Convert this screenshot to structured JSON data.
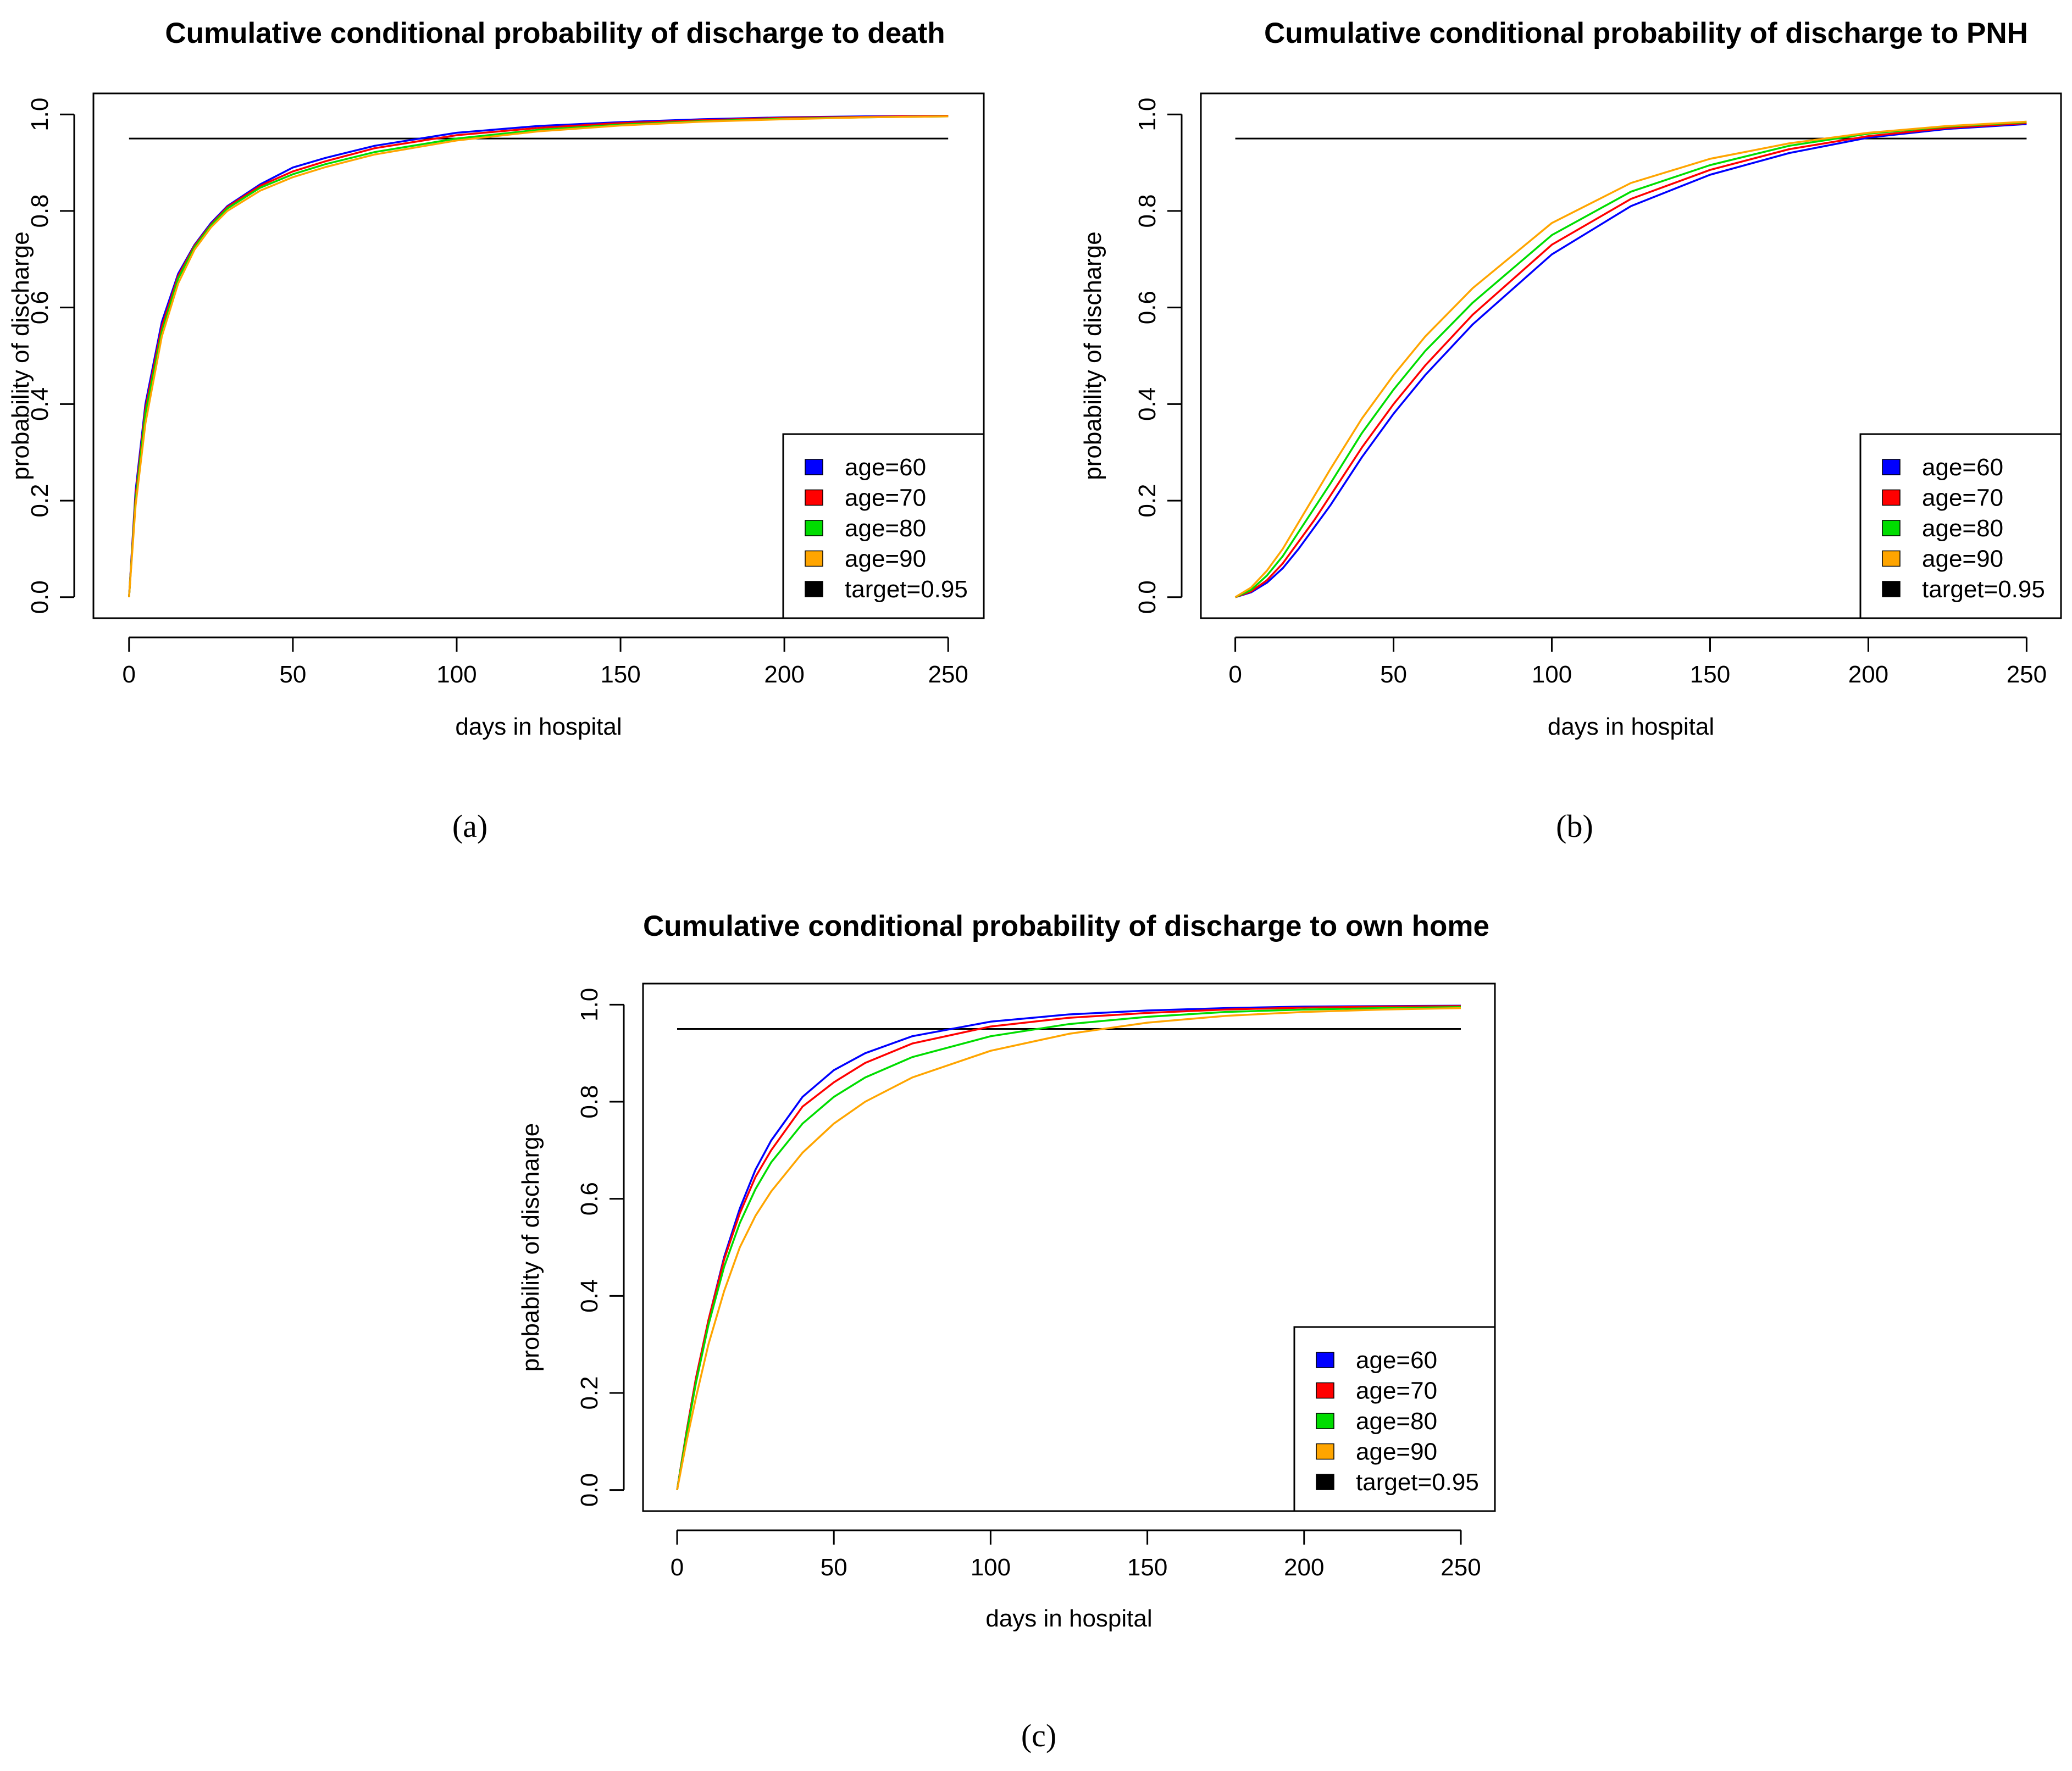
{
  "figure_labels": [
    "(a)",
    "(b)",
    "(c)"
  ],
  "chart_data": [
    {
      "type": "line",
      "title": "Cumulative conditional probability of discharge to death",
      "xlabel": "days in hospital",
      "ylabel": "probability of discharge",
      "xlim": [
        0,
        250
      ],
      "ylim": [
        0,
        1
      ],
      "xticks": [
        0,
        50,
        100,
        150,
        200,
        250
      ],
      "xtick_labels": [
        "0",
        "50",
        "100",
        "150",
        "200",
        "250"
      ],
      "yticks": [
        0,
        0.2,
        0.4,
        0.6,
        0.8,
        1.0
      ],
      "ytick_labels": [
        "0.0",
        "0.2",
        "0.4",
        "0.6",
        "0.8",
        "1.0"
      ],
      "legend_position": "bottom-right",
      "x": [
        0,
        2,
        5,
        10,
        15,
        20,
        25,
        30,
        40,
        50,
        60,
        75,
        100,
        125,
        150,
        175,
        200,
        225,
        250
      ],
      "series": [
        {
          "name": "age=60",
          "color": "#0000ff",
          "values": [
            0.0,
            0.22,
            0.4,
            0.57,
            0.67,
            0.73,
            0.775,
            0.81,
            0.855,
            0.89,
            0.91,
            0.935,
            0.962,
            0.976,
            0.984,
            0.99,
            0.994,
            0.996,
            0.997
          ]
        },
        {
          "name": "age=70",
          "color": "#ff0000",
          "values": [
            0.0,
            0.21,
            0.39,
            0.56,
            0.665,
            0.728,
            0.772,
            0.808,
            0.852,
            0.882,
            0.903,
            0.93,
            0.957,
            0.972,
            0.982,
            0.988,
            0.993,
            0.995,
            0.997
          ]
        },
        {
          "name": "age=80",
          "color": "#00dd00",
          "values": [
            0.0,
            0.2,
            0.38,
            0.55,
            0.66,
            0.725,
            0.77,
            0.805,
            0.848,
            0.876,
            0.897,
            0.922,
            0.95,
            0.968,
            0.979,
            0.986,
            0.991,
            0.994,
            0.996
          ]
        },
        {
          "name": "age=90",
          "color": "#ffa500",
          "values": [
            0.0,
            0.19,
            0.36,
            0.54,
            0.65,
            0.72,
            0.766,
            0.8,
            0.842,
            0.87,
            0.891,
            0.917,
            0.946,
            0.965,
            0.977,
            0.985,
            0.99,
            0.994,
            0.996
          ]
        }
      ],
      "target": {
        "name": "target=0.95",
        "color": "#000000",
        "value": 0.95
      }
    },
    {
      "type": "line",
      "title": "Cumulative conditional probability of discharge to PNH",
      "xlabel": "days in hospital",
      "ylabel": "probability of discharge",
      "xlim": [
        0,
        250
      ],
      "ylim": [
        0,
        1
      ],
      "xticks": [
        0,
        50,
        100,
        150,
        200,
        250
      ],
      "xtick_labels": [
        "0",
        "50",
        "100",
        "150",
        "200",
        "250"
      ],
      "yticks": [
        0,
        0.2,
        0.4,
        0.6,
        0.8,
        1.0
      ],
      "ytick_labels": [
        "0.0",
        "0.2",
        "0.4",
        "0.6",
        "0.8",
        "1.0"
      ],
      "legend_position": "bottom-right",
      "x": [
        0,
        5,
        10,
        15,
        20,
        25,
        30,
        40,
        50,
        60,
        75,
        100,
        125,
        150,
        175,
        200,
        225,
        250
      ],
      "series": [
        {
          "name": "age=60",
          "color": "#0000ff",
          "values": [
            0.0,
            0.01,
            0.03,
            0.06,
            0.1,
            0.145,
            0.19,
            0.29,
            0.38,
            0.46,
            0.565,
            0.71,
            0.81,
            0.875,
            0.92,
            0.952,
            0.97,
            0.98
          ]
        },
        {
          "name": "age=70",
          "color": "#ff0000",
          "values": [
            0.0,
            0.012,
            0.035,
            0.07,
            0.115,
            0.16,
            0.21,
            0.31,
            0.4,
            0.48,
            0.585,
            0.73,
            0.825,
            0.885,
            0.928,
            0.955,
            0.972,
            0.982
          ]
        },
        {
          "name": "age=80",
          "color": "#00dd00",
          "values": [
            0.0,
            0.015,
            0.045,
            0.085,
            0.135,
            0.185,
            0.235,
            0.34,
            0.43,
            0.51,
            0.61,
            0.75,
            0.84,
            0.895,
            0.935,
            0.96,
            0.975,
            0.984
          ]
        },
        {
          "name": "age=90",
          "color": "#ffa500",
          "values": [
            0.0,
            0.02,
            0.055,
            0.1,
            0.155,
            0.21,
            0.265,
            0.37,
            0.46,
            0.54,
            0.64,
            0.775,
            0.858,
            0.908,
            0.94,
            0.962,
            0.976,
            0.985
          ]
        }
      ],
      "target": {
        "name": "target=0.95",
        "color": "#000000",
        "value": 0.95
      }
    },
    {
      "type": "line",
      "title": "Cumulative conditional probability of discharge to own home",
      "xlabel": "days in hospital",
      "ylabel": "probability of discharge",
      "xlim": [
        0,
        250
      ],
      "ylim": [
        0,
        1
      ],
      "xticks": [
        0,
        50,
        100,
        150,
        200,
        250
      ],
      "xtick_labels": [
        "0",
        "50",
        "100",
        "150",
        "200",
        "250"
      ],
      "yticks": [
        0,
        0.2,
        0.4,
        0.6,
        0.8,
        1.0
      ],
      "ytick_labels": [
        "0.0",
        "0.2",
        "0.4",
        "0.6",
        "0.8",
        "1.0"
      ],
      "legend_position": "bottom-right",
      "x": [
        0,
        3,
        6,
        10,
        15,
        20,
        25,
        30,
        40,
        50,
        60,
        75,
        100,
        125,
        150,
        175,
        200,
        225,
        250
      ],
      "series": [
        {
          "name": "age=60",
          "color": "#0000ff",
          "values": [
            0.0,
            0.12,
            0.23,
            0.35,
            0.48,
            0.58,
            0.66,
            0.72,
            0.81,
            0.865,
            0.9,
            0.935,
            0.965,
            0.98,
            0.988,
            0.993,
            0.996,
            0.997,
            0.998
          ]
        },
        {
          "name": "age=70",
          "color": "#ff0000",
          "values": [
            0.0,
            0.12,
            0.23,
            0.35,
            0.475,
            0.57,
            0.645,
            0.7,
            0.79,
            0.84,
            0.88,
            0.92,
            0.955,
            0.973,
            0.983,
            0.99,
            0.994,
            0.996,
            0.997
          ]
        },
        {
          "name": "age=80",
          "color": "#00dd00",
          "values": [
            0.0,
            0.115,
            0.22,
            0.34,
            0.46,
            0.55,
            0.62,
            0.675,
            0.755,
            0.81,
            0.85,
            0.892,
            0.935,
            0.96,
            0.975,
            0.985,
            0.99,
            0.993,
            0.995
          ]
        },
        {
          "name": "age=90",
          "color": "#ffa500",
          "values": [
            0.0,
            0.1,
            0.19,
            0.3,
            0.41,
            0.5,
            0.565,
            0.615,
            0.695,
            0.755,
            0.8,
            0.85,
            0.905,
            0.94,
            0.963,
            0.977,
            0.985,
            0.99,
            0.993
          ]
        }
      ],
      "target": {
        "name": "target=0.95",
        "color": "#000000",
        "value": 0.95
      }
    }
  ]
}
